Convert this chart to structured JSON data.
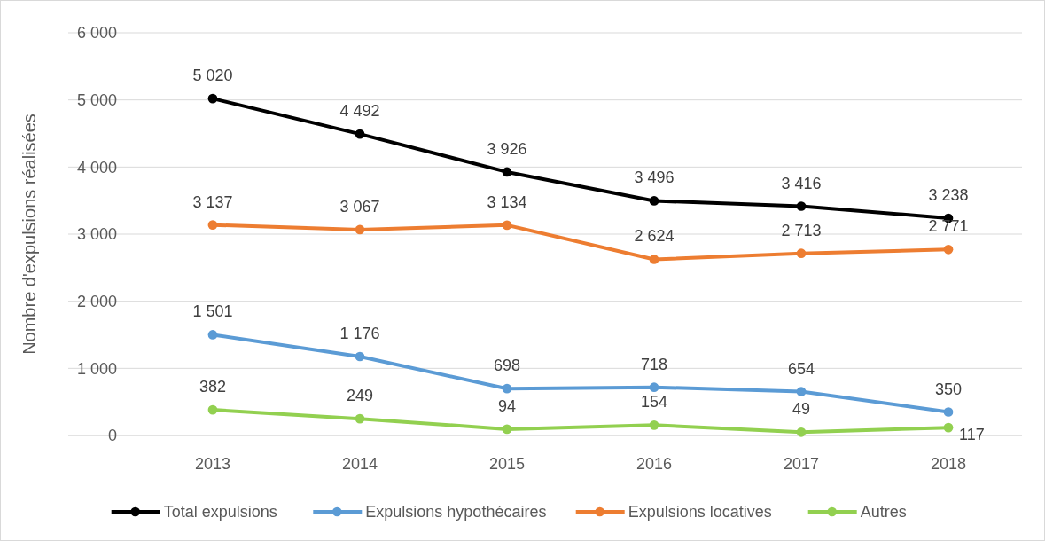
{
  "chart_data": {
    "type": "line",
    "ylabel": "Nombre d'expulsions réalisées",
    "categories": [
      "2013",
      "2014",
      "2015",
      "2016",
      "2017",
      "2018"
    ],
    "ylim": [
      0,
      6000
    ],
    "yticks": [
      0,
      {
        "value": 1000,
        "label": "1 000"
      },
      {
        "value": 2000,
        "label": "2 000"
      },
      {
        "value": 3000,
        "label": "3 000"
      },
      {
        "value": 4000,
        "label": "4 000"
      },
      {
        "value": 5000,
        "label": "5 000"
      },
      {
        "value": 6000,
        "label": "6 000"
      }
    ],
    "grid": "y",
    "legend": "bottom",
    "marker": "circle",
    "line_style": "solid",
    "series": [
      {
        "name": "Total expulsions",
        "color": "#000000",
        "values": [
          5020,
          4492,
          3926,
          3496,
          3416,
          3238
        ],
        "value_labels": [
          "5 020",
          "4 492",
          "3 926",
          "3 496",
          "3 416",
          "3 238"
        ]
      },
      {
        "name": "Expulsions hypothécaires",
        "color": "#5b9bd5",
        "values": [
          1501,
          1176,
          698,
          718,
          654,
          350
        ],
        "value_labels": [
          "1 501",
          "1 176",
          "698",
          "718",
          "654",
          "350"
        ]
      },
      {
        "name": "Expulsions locatives",
        "color": "#ed7d31",
        "values": [
          3137,
          3067,
          3134,
          2624,
          2713,
          2771
        ],
        "value_labels": [
          "3 137",
          "3 067",
          "3 134",
          "2 624",
          "2 713",
          "2 771"
        ]
      },
      {
        "name": "Autres",
        "color": "#92d050",
        "values": [
          382,
          249,
          94,
          154,
          49,
          117
        ],
        "value_labels": [
          "382",
          "249",
          "94",
          "154",
          "49",
          "117"
        ]
      }
    ]
  }
}
